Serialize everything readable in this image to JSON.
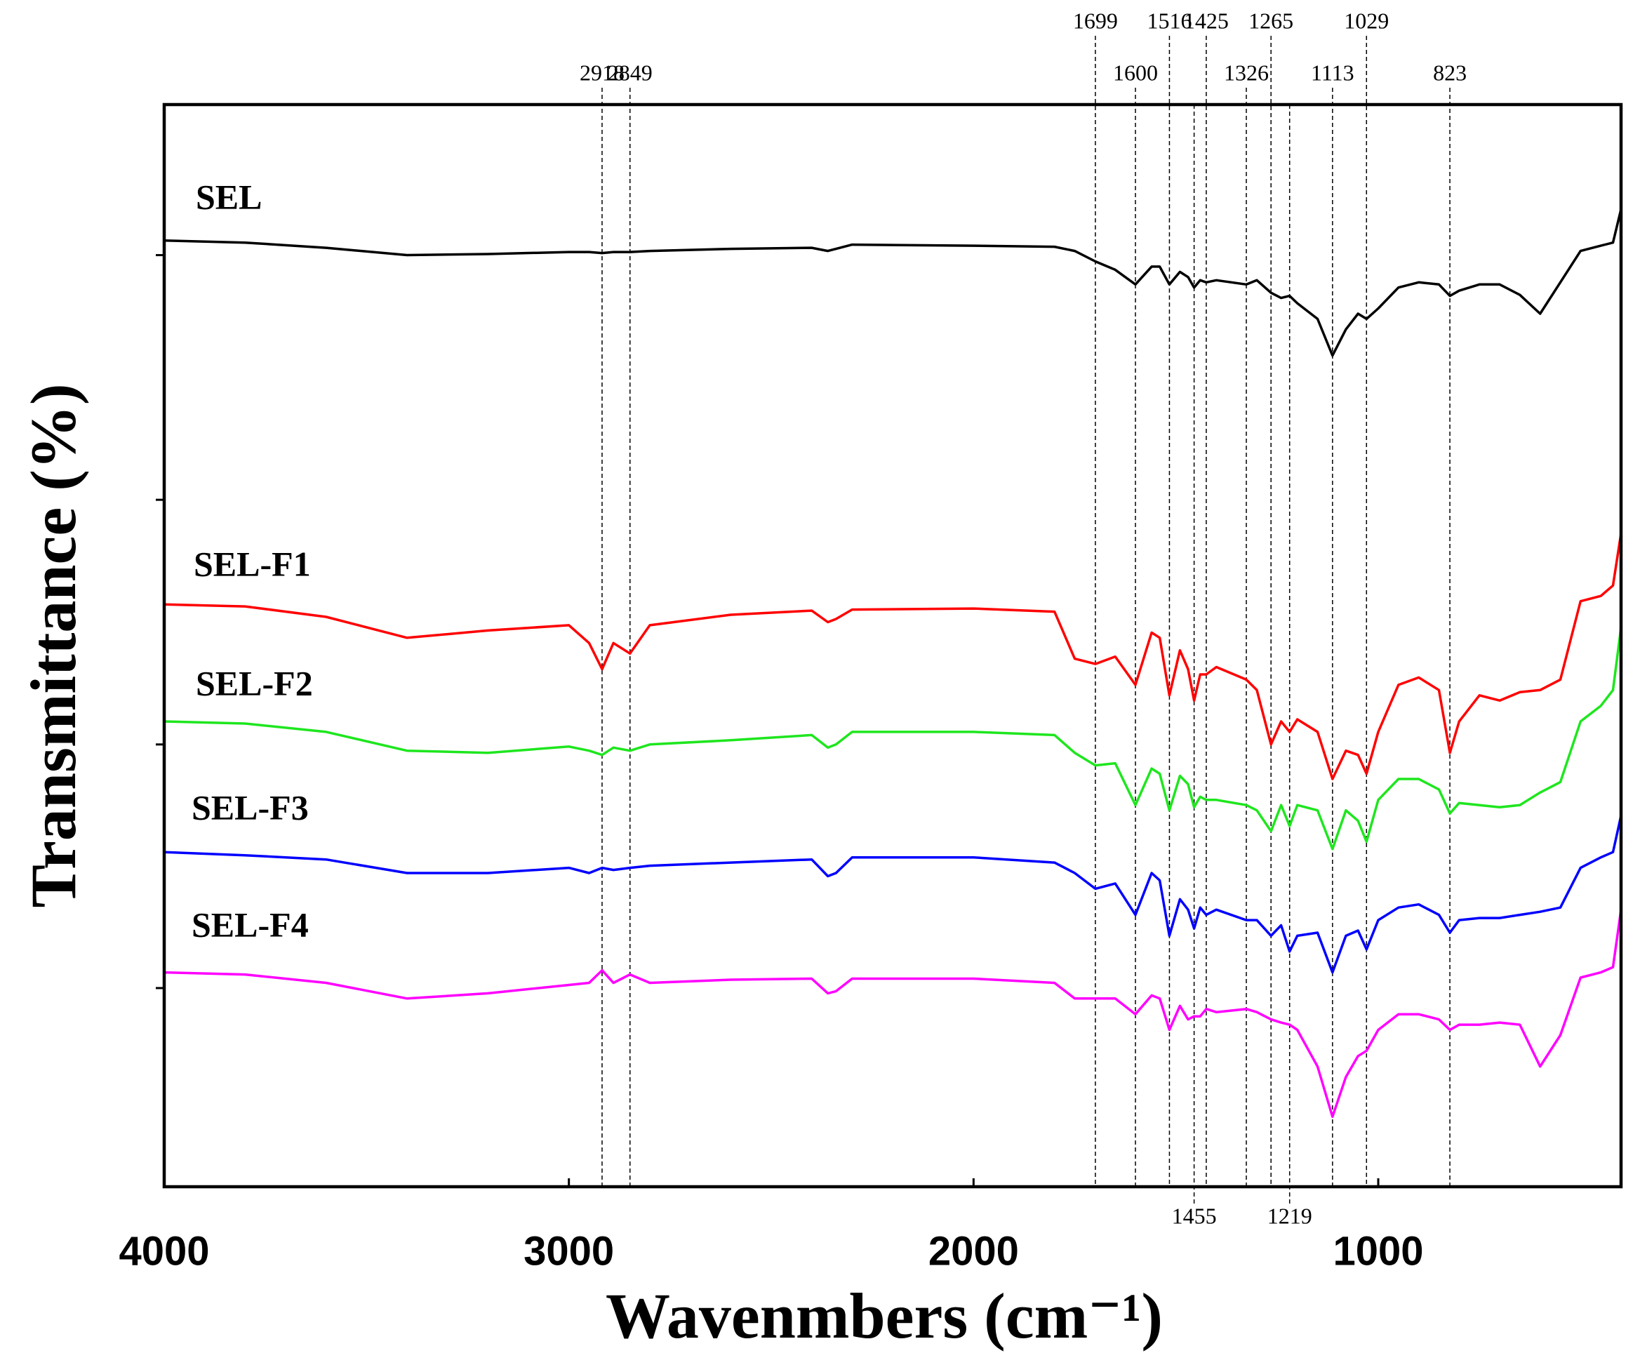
{
  "chart_data": {
    "type": "line",
    "xlabel": "Wavenmbers (cm⁻¹)",
    "ylabel": "Transmittance (%)",
    "xlim": [
      4000,
      400
    ],
    "xticks": [
      4000,
      3000,
      2000,
      1000
    ],
    "ylim": [
      0,
      1035
    ],
    "yticks": [
      190,
      423,
      657,
      891
    ],
    "x": [
      4000,
      3800,
      3600,
      3400,
      3200,
      3000,
      2950,
      2918,
      2890,
      2849,
      2800,
      2600,
      2400,
      2360,
      2340,
      2300,
      2000,
      1800,
      1750,
      1699,
      1650,
      1600,
      1560,
      1540,
      1516,
      1490,
      1470,
      1455,
      1440,
      1425,
      1400,
      1326,
      1300,
      1265,
      1240,
      1219,
      1200,
      1150,
      1113,
      1080,
      1050,
      1029,
      1000,
      950,
      900,
      850,
      823,
      800,
      750,
      700,
      650,
      600,
      550,
      500,
      450,
      420,
      400
    ],
    "series": [
      {
        "name": "SEL",
        "color": "#000000",
        "values": [
          905,
          903,
          898,
          891,
          892,
          894,
          894,
          893,
          894,
          894,
          895,
          897,
          898,
          895,
          897,
          901,
          900,
          899,
          895,
          885,
          877,
          863,
          880,
          880,
          863,
          875,
          870,
          860,
          867,
          865,
          867,
          863,
          867,
          855,
          850,
          852,
          845,
          830,
          795,
          820,
          835,
          830,
          840,
          860,
          865,
          863,
          852,
          857,
          863,
          863,
          853,
          835,
          865,
          895,
          900,
          903,
          935
        ]
      },
      {
        "name": "SEL-F1",
        "color": "#ff0000",
        "values": [
          557,
          555,
          545,
          525,
          532,
          537,
          520,
          495,
          520,
          510,
          537,
          547,
          551,
          540,
          543,
          552,
          553,
          550,
          505,
          500,
          507,
          480,
          530,
          525,
          470,
          513,
          495,
          465,
          490,
          490,
          497,
          485,
          475,
          423,
          445,
          435,
          447,
          435,
          390,
          417,
          413,
          395,
          435,
          480,
          487,
          475,
          415,
          445,
          470,
          465,
          473,
          475,
          485,
          560,
          565,
          575,
          625
        ]
      },
      {
        "name": "SEL-F2",
        "color": "#1ee61e",
        "values": [
          445,
          443,
          435,
          417,
          415,
          421,
          417,
          413,
          420,
          417,
          423,
          427,
          432,
          420,
          423,
          435,
          435,
          432,
          415,
          403,
          405,
          365,
          400,
          395,
          360,
          393,
          385,
          363,
          373,
          370,
          370,
          365,
          360,
          340,
          365,
          345,
          365,
          360,
          323,
          360,
          350,
          330,
          370,
          390,
          390,
          380,
          357,
          367,
          365,
          363,
          365,
          377,
          387,
          445,
          460,
          475,
          535
        ]
      },
      {
        "name": "SEL-F3",
        "color": "#0000ff",
        "values": [
          320,
          317,
          313,
          300,
          300,
          305,
          300,
          305,
          303,
          305,
          307,
          310,
          313,
          297,
          300,
          315,
          315,
          310,
          300,
          285,
          290,
          260,
          300,
          293,
          240,
          275,
          265,
          247,
          267,
          260,
          265,
          255,
          255,
          240,
          250,
          225,
          240,
          243,
          205,
          240,
          245,
          227,
          255,
          267,
          270,
          260,
          243,
          255,
          257,
          257,
          260,
          263,
          267,
          305,
          315,
          320,
          355
        ]
      },
      {
        "name": "SEL-F4",
        "color": "#ff00ff",
        "values": [
          205,
          203,
          195,
          180,
          185,
          193,
          195,
          207,
          195,
          203,
          195,
          198,
          199,
          185,
          187,
          199,
          199,
          195,
          180,
          180,
          180,
          165,
          183,
          180,
          150,
          173,
          160,
          163,
          163,
          170,
          167,
          170,
          167,
          160,
          157,
          155,
          150,
          115,
          67,
          105,
          125,
          130,
          150,
          165,
          165,
          160,
          150,
          155,
          155,
          157,
          155,
          115,
          145,
          200,
          205,
          210,
          265
        ]
      }
    ],
    "peaks": [
      {
        "x": 2918,
        "position": "top-lower"
      },
      {
        "x": 2849,
        "position": "top-lower"
      },
      {
        "x": 1699,
        "position": "top-upper"
      },
      {
        "x": 1600,
        "position": "top-lower"
      },
      {
        "x": 1516,
        "position": "top-upper"
      },
      {
        "x": 1455,
        "position": "bottom"
      },
      {
        "x": 1425,
        "position": "top-upper"
      },
      {
        "x": 1326,
        "position": "top-lower"
      },
      {
        "x": 1265,
        "position": "top-upper"
      },
      {
        "x": 1219,
        "position": "bottom"
      },
      {
        "x": 1113,
        "position": "top-lower"
      },
      {
        "x": 1029,
        "position": "top-upper"
      },
      {
        "x": 823,
        "position": "top-lower"
      }
    ]
  }
}
